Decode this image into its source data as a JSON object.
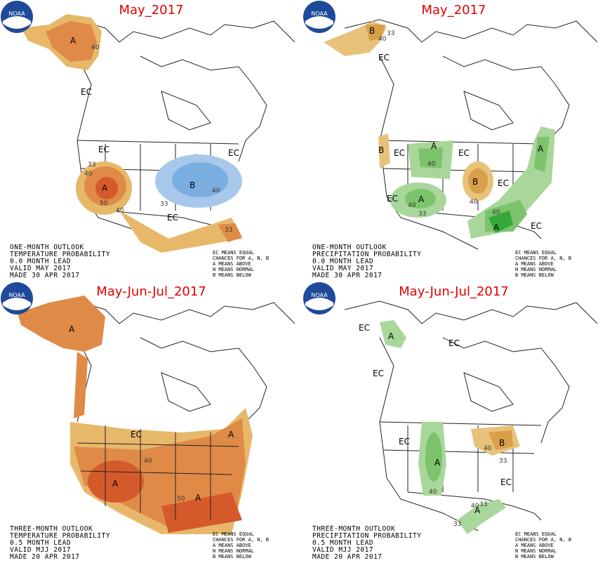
{
  "panels": [
    {
      "title": "May_2017",
      "outlook": [
        "ONE-MONTH OUTLOOK",
        "TEMPERATURE PROBABILITY",
        "0.0 MONTH LEAD",
        "VALID MAY 2017",
        "MADE 30 APR 2017"
      ],
      "labels": {
        "a1": "A",
        "a2": "A",
        "b1": "B",
        "ec1": "EC",
        "ec2": "EC",
        "ec3": "EC",
        "ec4": "EC",
        "n40a": "40",
        "n33a": "33",
        "n40b": "40",
        "n50": "50",
        "n40c": "40",
        "n33b": "33",
        "n40d": "40",
        "n33c": "33"
      }
    },
    {
      "title": "May_2017",
      "outlook": [
        "ONE-MONTH OUTLOOK",
        "PRECIPITATION PROBABILITY",
        "0.0 MONTH LEAD",
        "VALID MAY 2017",
        "MADE 30 APR 2017"
      ],
      "labels": {
        "b1": "B",
        "b2": "B",
        "b3": "B",
        "a1": "A",
        "a2": "A",
        "a3": "A",
        "a4": "A",
        "ec1": "EC",
        "ec2": "EC",
        "ec3": "EC",
        "ec4": "EC",
        "ec5": "EC",
        "ec6": "EC",
        "n40a": "40",
        "n33a": "33",
        "n40b": "40",
        "n40c": "40",
        "n33b": "33",
        "n40d": "40",
        "n40e": "40"
      }
    },
    {
      "title": "May-Jun-Jul_2017",
      "outlook": [
        "THREE-MONTH OUTLOOK",
        "TEMPERATURE PROBABILITY",
        "0.5 MONTH LEAD",
        "VALID MJJ 2017",
        "MADE 20 APR 2017"
      ],
      "labels": {
        "a1": "A",
        "a2": "A",
        "a3": "A",
        "a4": "A",
        "ec1": "EC",
        "n40a": "40",
        "n50": "50"
      }
    },
    {
      "title": "May-Jun-Jul_2017",
      "outlook": [
        "THREE-MONTH OUTLOOK",
        "PRECIPITATION PROBABILITY",
        "0.5 MONTH LEAD",
        "VALID MJJ 2017",
        "MADE 20 APR 2017"
      ],
      "labels": {
        "a1": "A",
        "a2": "A",
        "a3": "A",
        "b1": "B",
        "ec1": "EC",
        "ec2": "EC",
        "ec3": "EC",
        "ec4": "EC",
        "ec5": "EC",
        "n40a": "40",
        "n40b": "40",
        "n33a": "33",
        "n40c": "40",
        "n33b": "33",
        "n33c": "33"
      }
    }
  ],
  "legend": [
    "EC MEANS EQUAL",
    "CHANCES FOR A, N, B",
    "A MEANS ABOVE",
    "N MEANS NORMAL",
    "B MEANS BELOW"
  ],
  "logo_text": "NOAA",
  "colors": {
    "above_33": "#e8b86a",
    "above_40": "#e08a48",
    "above_50": "#d45a2c",
    "below_33": "#a7c8ea",
    "below_40": "#7aaee0",
    "wet_33": "#a9d69a",
    "wet_40": "#7cc36c",
    "wet_50": "#35a83a",
    "dry_33": "#e8c27a",
    "dry_40": "#d8a04a",
    "title": "#e00000"
  }
}
